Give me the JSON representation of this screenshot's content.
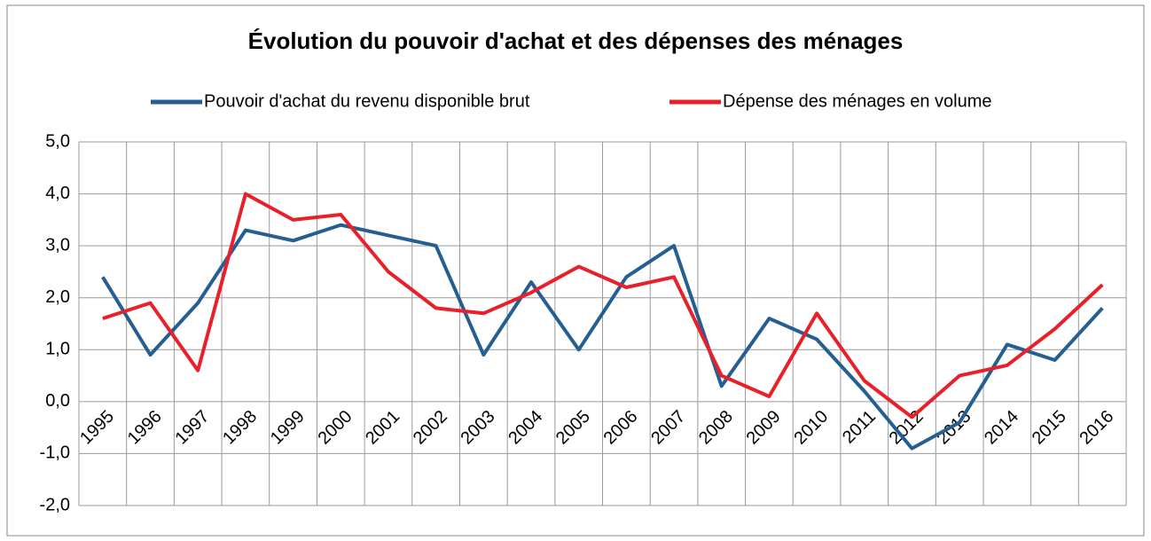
{
  "chart_data": {
    "type": "line",
    "title": "Évolution du pouvoir d'achat et des dépenses des ménages",
    "categories": [
      "1995",
      "1996",
      "1997",
      "1998",
      "1999",
      "2000",
      "2001",
      "2002",
      "2003",
      "2004",
      "2005",
      "2006",
      "2007",
      "2008",
      "2009",
      "2010",
      "2011",
      "2012",
      "2013",
      "2014",
      "2015",
      "2016"
    ],
    "series": [
      {
        "name": "Pouvoir d'achat du revenu disponible brut",
        "color": "#255e91",
        "values": [
          2.4,
          0.9,
          1.9,
          3.3,
          3.1,
          3.4,
          3.2,
          3.0,
          0.9,
          2.3,
          1.0,
          2.4,
          3.0,
          0.3,
          1.6,
          1.2,
          0.2,
          -0.9,
          -0.4,
          1.1,
          0.8,
          1.8
        ]
      },
      {
        "name": "Dépense des ménages en volume",
        "color": "#e8202a",
        "values": [
          1.6,
          1.9,
          0.6,
          4.0,
          3.5,
          3.6,
          2.5,
          1.8,
          1.7,
          2.1,
          2.6,
          2.2,
          2.4,
          0.5,
          0.1,
          1.7,
          0.4,
          -0.3,
          0.5,
          0.7,
          1.4,
          2.25
        ]
      }
    ],
    "ylim": [
      -2,
      5
    ],
    "yticks": [
      {
        "value": -2,
        "label": "-2,0"
      },
      {
        "value": -1,
        "label": "-1,0"
      },
      {
        "value": 0,
        "label": "0,0"
      },
      {
        "value": 1,
        "label": "1,0"
      },
      {
        "value": 2,
        "label": "2,0"
      },
      {
        "value": 3,
        "label": "3,0"
      },
      {
        "value": 4,
        "label": "4,0"
      },
      {
        "value": 5,
        "label": "5,0"
      }
    ],
    "grid": true
  }
}
